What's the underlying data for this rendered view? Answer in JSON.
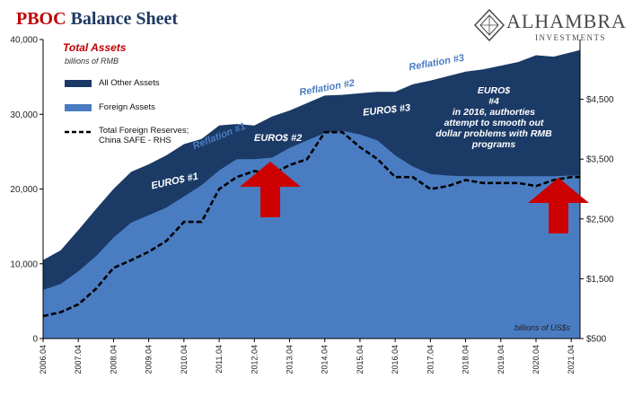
{
  "title": {
    "part1": "PBOC",
    "part2": "Balance Sheet"
  },
  "brand": {
    "name": "ALHAMBRA",
    "sub": "INVESTMENTS"
  },
  "legend": {
    "title": "Total Assets",
    "subtitle": "billions of RMB",
    "items": [
      {
        "label": "All Other Assets"
      },
      {
        "label": "Foreign Assets"
      },
      {
        "label": "Total Foreign Reserves;\nChina SAFE - RHS"
      }
    ]
  },
  "rhs_units": "billions of US$s",
  "annotations": {
    "euro1": "EURO$ #1",
    "euro2": "EURO$ #2",
    "euro3": "EURO$ #3",
    "euro4": "EURO$\n#4\nin 2016, authorties\nattempt to smooth out\ndollar problems with RMB\nprograms",
    "reflation1": "Reflation #1",
    "reflation2": "Reflation #2",
    "reflation3": "Reflation #3"
  },
  "colors": {
    "other_assets": "#1b3a66",
    "foreign_assets": "#4a7cc2",
    "reserves_line": "#000000",
    "arrow": "#cc0000",
    "title_red": "#c00000",
    "title_blue": "#1f3864"
  },
  "chart_data": {
    "type": "area",
    "x": [
      2006.0,
      2006.5,
      2007.0,
      2007.5,
      2008.0,
      2008.5,
      2009.0,
      2009.5,
      2010.0,
      2010.5,
      2011.0,
      2011.5,
      2012.0,
      2012.5,
      2013.0,
      2013.5,
      2014.0,
      2014.5,
      2015.0,
      2015.5,
      2016.0,
      2016.5,
      2017.0,
      2017.5,
      2018.0,
      2018.5,
      2019.0,
      2019.5,
      2020.0,
      2020.5,
      2021.0,
      2021.25
    ],
    "x_tick_labels": [
      "2006.04",
      "2007.04",
      "2008.04",
      "2009.04",
      "2010.04",
      "2011.04",
      "2012.04",
      "2013.04",
      "2014.04",
      "2015.04",
      "2016.04",
      "2017.04",
      "2018.04",
      "2019.04",
      "2020.04",
      "2021.04"
    ],
    "series": [
      {
        "name": "Foreign Assets",
        "axis": "left",
        "values": [
          6500,
          7300,
          9000,
          11000,
          13500,
          15500,
          16500,
          17500,
          19000,
          20500,
          22500,
          24000,
          24000,
          24200,
          25500,
          26500,
          27500,
          27800,
          27300,
          26500,
          24500,
          23000,
          22000,
          21800,
          21700,
          21700,
          21700,
          21700,
          21700,
          21700,
          21800,
          21800
        ]
      },
      {
        "name": "All Other Assets",
        "axis": "left",
        "values": [
          4000,
          4500,
          5500,
          6300,
          6500,
          6800,
          6800,
          7000,
          7000,
          6200,
          6000,
          4700,
          4500,
          5500,
          5000,
          5000,
          5000,
          4800,
          5500,
          6500,
          8500,
          11000,
          12500,
          13300,
          14000,
          14300,
          14800,
          15300,
          16200,
          16000,
          16500,
          16800
        ]
      },
      {
        "name": "Total Foreign Reserves; China SAFE - RHS",
        "axis": "right",
        "values": [
          875,
          940,
          1070,
          1330,
          1680,
          1810,
          1950,
          2130,
          2450,
          2450,
          3000,
          3200,
          3300,
          3250,
          3400,
          3500,
          3950,
          3950,
          3700,
          3500,
          3200,
          3200,
          3000,
          3050,
          3150,
          3100,
          3100,
          3100,
          3050,
          3150,
          3200,
          3200
        ]
      }
    ],
    "ylim_left": [
      0,
      40000
    ],
    "yticks_left": [
      0,
      10000,
      20000,
      30000,
      40000
    ],
    "ytick_labels_left": [
      "0",
      "10,000",
      "20,000",
      "30,000",
      "40,000"
    ],
    "ylim_right": [
      500,
      5500
    ],
    "yticks_right": [
      500,
      1500,
      2500,
      3500,
      4500
    ],
    "ytick_labels_right": [
      "$500",
      "$1,500",
      "$2,500",
      "$3,500",
      "$4,500"
    ],
    "grid": false,
    "legend_position": "top-left"
  }
}
